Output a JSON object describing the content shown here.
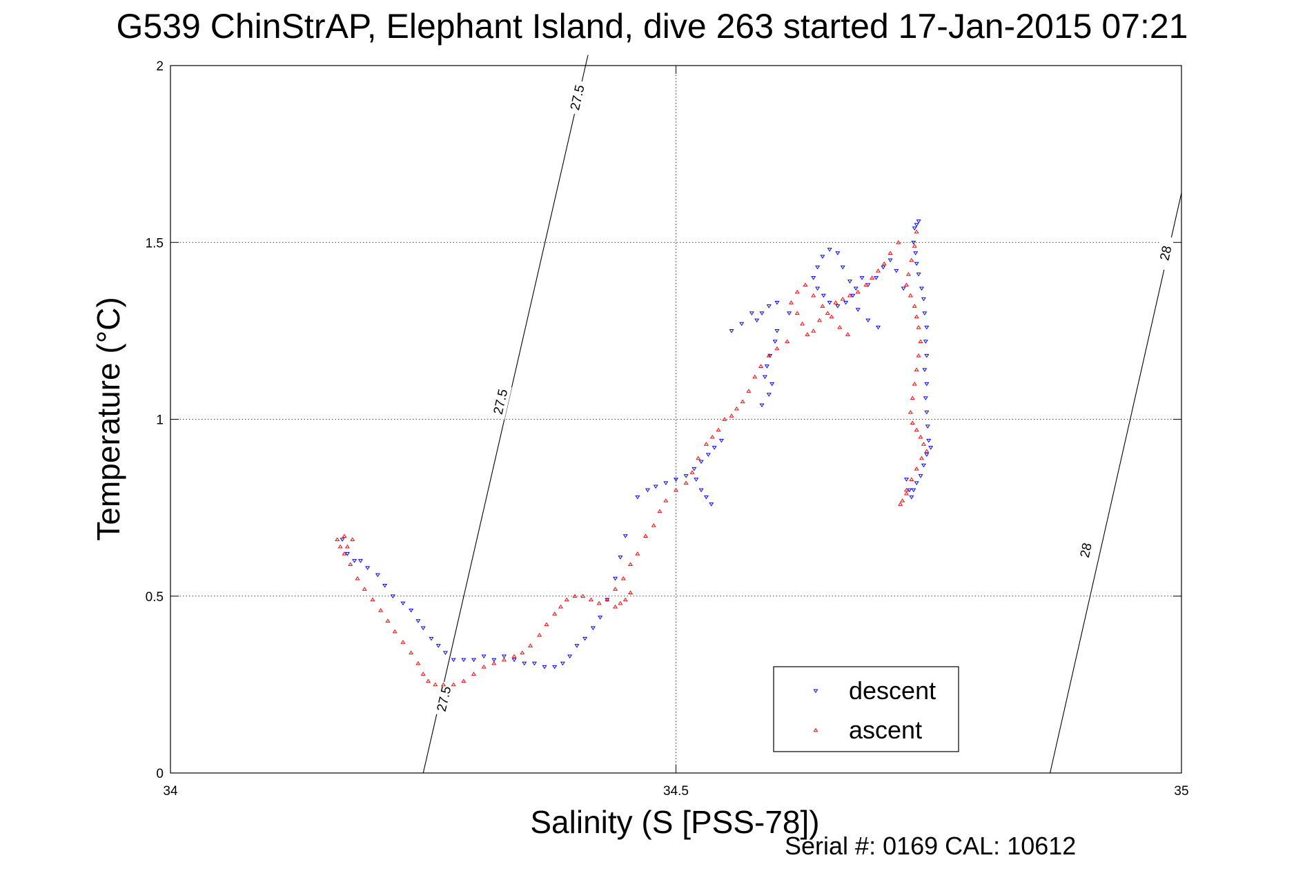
{
  "chart_data": {
    "type": "scatter",
    "title": "G539 ChinStrAP, Elephant Island, dive 263 started 17-Jan-2015 07:21",
    "xlabel": "Salinity (S [PSS-78])",
    "ylabel": "Temperature (°C)",
    "xlim": [
      34,
      35
    ],
    "ylim": [
      0,
      2
    ],
    "xticks": [
      34,
      34.5,
      35
    ],
    "xtick_labels": [
      "34",
      "34.5",
      "35"
    ],
    "yticks": [
      0,
      0.5,
      1,
      1.5,
      2
    ],
    "ytick_labels": [
      "0",
      "0.5",
      "1",
      "1.5",
      "2"
    ],
    "grid": true,
    "legend_position": "bottom-right",
    "annotation": "Serial #: 0169 CAL: 10612",
    "contours": [
      {
        "label": "27.5",
        "points": [
          [
            34.25,
            0
          ],
          [
            34.413,
            2.03
          ]
        ],
        "label_positions": [
          [
            34.27,
            0.21
          ],
          [
            34.326,
            1.05
          ],
          [
            34.402,
            1.91
          ]
        ]
      },
      {
        "label": "28",
        "points": [
          [
            34.87,
            0
          ],
          [
            35.0,
            1.64
          ]
        ],
        "label_positions": [
          [
            34.905,
            0.63
          ],
          [
            34.984,
            1.47
          ]
        ]
      }
    ],
    "series": [
      {
        "name": "descent",
        "color": "#0000ff",
        "marker": "triangle-down",
        "points": [
          [
            34.74,
            1.56
          ],
          [
            34.738,
            1.55
          ],
          [
            34.736,
            1.54
          ],
          [
            34.735,
            1.5
          ],
          [
            34.737,
            1.47
          ],
          [
            34.738,
            1.44
          ],
          [
            34.74,
            1.41
          ],
          [
            34.743,
            1.37
          ],
          [
            34.745,
            1.34
          ],
          [
            34.746,
            1.3
          ],
          [
            34.748,
            1.26
          ],
          [
            34.747,
            1.22
          ],
          [
            34.748,
            1.18
          ],
          [
            34.746,
            1.14
          ],
          [
            34.748,
            1.1
          ],
          [
            34.747,
            1.06
          ],
          [
            34.748,
            1.02
          ],
          [
            34.749,
            0.98
          ],
          [
            34.75,
            0.94
          ],
          [
            34.752,
            0.92
          ],
          [
            34.748,
            0.9
          ],
          [
            34.745,
            0.87
          ],
          [
            34.742,
            0.84
          ],
          [
            34.738,
            0.82
          ],
          [
            34.735,
            0.8
          ],
          [
            34.733,
            0.78
          ],
          [
            34.731,
            0.8
          ],
          [
            34.728,
            0.83
          ],
          [
            34.725,
            1.37
          ],
          [
            34.718,
            1.42
          ],
          [
            34.712,
            1.45
          ],
          [
            34.705,
            1.43
          ],
          [
            34.698,
            1.4
          ],
          [
            34.69,
            1.38
          ],
          [
            34.684,
            1.4
          ],
          [
            34.678,
            1.37
          ],
          [
            34.672,
            1.39
          ],
          [
            34.665,
            1.43
          ],
          [
            34.66,
            1.47
          ],
          [
            34.652,
            1.48
          ],
          [
            34.645,
            1.46
          ],
          [
            34.64,
            1.43
          ],
          [
            34.636,
            1.4
          ],
          [
            34.64,
            1.37
          ],
          [
            34.646,
            1.35
          ],
          [
            34.652,
            1.33
          ],
          [
            34.66,
            1.32
          ],
          [
            34.668,
            1.33
          ],
          [
            34.675,
            1.35
          ],
          [
            34.68,
            1.31
          ],
          [
            34.69,
            1.28
          ],
          [
            34.7,
            1.26
          ],
          [
            34.612,
            1.3
          ],
          [
            34.6,
            1.33
          ],
          [
            34.592,
            1.32
          ],
          [
            34.585,
            1.3
          ],
          [
            34.58,
            1.28
          ],
          [
            34.575,
            1.3
          ],
          [
            34.565,
            1.27
          ],
          [
            34.555,
            1.25
          ],
          [
            34.6,
            1.25
          ],
          [
            34.598,
            1.22
          ],
          [
            34.593,
            1.18
          ],
          [
            34.59,
            1.15
          ],
          [
            34.588,
            1.12
          ],
          [
            34.595,
            1.1
          ],
          [
            34.592,
            1.07
          ],
          [
            34.585,
            1.04
          ],
          [
            34.545,
            0.94
          ],
          [
            34.538,
            0.92
          ],
          [
            34.532,
            0.9
          ],
          [
            34.525,
            0.88
          ],
          [
            34.518,
            0.86
          ],
          [
            34.51,
            0.84
          ],
          [
            34.5,
            0.83
          ],
          [
            34.49,
            0.82
          ],
          [
            34.48,
            0.81
          ],
          [
            34.472,
            0.8
          ],
          [
            34.462,
            0.78
          ],
          [
            34.45,
            0.67
          ],
          [
            34.445,
            0.61
          ],
          [
            34.44,
            0.55
          ],
          [
            34.432,
            0.49
          ],
          [
            34.425,
            0.44
          ],
          [
            34.418,
            0.41
          ],
          [
            34.41,
            0.38
          ],
          [
            34.402,
            0.36
          ],
          [
            34.395,
            0.33
          ],
          [
            34.388,
            0.31
          ],
          [
            34.38,
            0.3
          ],
          [
            34.37,
            0.3
          ],
          [
            34.36,
            0.31
          ],
          [
            34.35,
            0.31
          ],
          [
            34.34,
            0.32
          ],
          [
            34.33,
            0.33
          ],
          [
            34.32,
            0.32
          ],
          [
            34.31,
            0.33
          ],
          [
            34.3,
            0.32
          ],
          [
            34.29,
            0.32
          ],
          [
            34.28,
            0.32
          ],
          [
            34.272,
            0.34
          ],
          [
            34.265,
            0.36
          ],
          [
            34.258,
            0.38
          ],
          [
            34.25,
            0.41
          ],
          [
            34.245,
            0.43
          ],
          [
            34.238,
            0.46
          ],
          [
            34.23,
            0.48
          ],
          [
            34.22,
            0.5
          ],
          [
            34.212,
            0.53
          ],
          [
            34.205,
            0.56
          ],
          [
            34.195,
            0.58
          ],
          [
            34.188,
            0.6
          ],
          [
            34.182,
            0.6
          ],
          [
            34.175,
            0.62
          ],
          [
            34.17,
            0.66
          ],
          [
            34.52,
            0.83
          ],
          [
            34.525,
            0.8
          ],
          [
            34.53,
            0.78
          ],
          [
            34.535,
            0.76
          ]
        ]
      },
      {
        "name": "ascent",
        "color": "#ff0000",
        "marker": "triangle-up",
        "points": [
          [
            34.738,
            1.53
          ],
          [
            34.736,
            1.49
          ],
          [
            34.733,
            1.45
          ],
          [
            34.73,
            1.41
          ],
          [
            34.728,
            1.38
          ],
          [
            34.732,
            1.35
          ],
          [
            34.736,
            1.32
          ],
          [
            34.738,
            1.29
          ],
          [
            34.74,
            1.26
          ],
          [
            34.742,
            1.22
          ],
          [
            34.74,
            1.18
          ],
          [
            34.738,
            1.14
          ],
          [
            34.736,
            1.1
          ],
          [
            34.734,
            1.06
          ],
          [
            34.732,
            1.02
          ],
          [
            34.734,
            0.99
          ],
          [
            34.738,
            0.97
          ],
          [
            34.742,
            0.95
          ],
          [
            34.745,
            0.93
          ],
          [
            34.748,
            0.91
          ],
          [
            34.743,
            0.89
          ],
          [
            34.738,
            0.86
          ],
          [
            34.733,
            0.83
          ],
          [
            34.728,
            0.8
          ],
          [
            34.724,
            0.77
          ],
          [
            34.722,
            0.76
          ],
          [
            34.728,
            0.79
          ],
          [
            34.72,
            1.5
          ],
          [
            34.712,
            1.47
          ],
          [
            34.706,
            1.44
          ],
          [
            34.7,
            1.42
          ],
          [
            34.694,
            1.4
          ],
          [
            34.688,
            1.38
          ],
          [
            34.68,
            1.36
          ],
          [
            34.672,
            1.35
          ],
          [
            34.665,
            1.34
          ],
          [
            34.658,
            1.33
          ],
          [
            34.65,
            1.3
          ],
          [
            34.642,
            1.28
          ],
          [
            34.636,
            1.25
          ],
          [
            34.63,
            1.24
          ],
          [
            34.625,
            1.27
          ],
          [
            34.62,
            1.3
          ],
          [
            34.614,
            1.33
          ],
          [
            34.62,
            1.36
          ],
          [
            34.628,
            1.38
          ],
          [
            34.636,
            1.35
          ],
          [
            34.645,
            1.32
          ],
          [
            34.654,
            1.29
          ],
          [
            34.662,
            1.26
          ],
          [
            34.67,
            1.24
          ],
          [
            34.61,
            1.22
          ],
          [
            34.6,
            1.2
          ],
          [
            34.592,
            1.18
          ],
          [
            34.584,
            1.15
          ],
          [
            34.578,
            1.12
          ],
          [
            34.572,
            1.08
          ],
          [
            34.566,
            1.05
          ],
          [
            34.56,
            1.03
          ],
          [
            34.555,
            1.01
          ],
          [
            34.548,
            1.0
          ],
          [
            34.542,
            0.97
          ],
          [
            34.536,
            0.95
          ],
          [
            34.53,
            0.93
          ],
          [
            34.522,
            0.89
          ],
          [
            34.516,
            0.85
          ],
          [
            34.51,
            0.82
          ],
          [
            34.5,
            0.8
          ],
          [
            34.49,
            0.77
          ],
          [
            34.484,
            0.74
          ],
          [
            34.478,
            0.7
          ],
          [
            34.47,
            0.67
          ],
          [
            34.462,
            0.62
          ],
          [
            34.455,
            0.59
          ],
          [
            34.448,
            0.55
          ],
          [
            34.44,
            0.52
          ],
          [
            34.432,
            0.49
          ],
          [
            34.424,
            0.48
          ],
          [
            34.416,
            0.49
          ],
          [
            34.408,
            0.5
          ],
          [
            34.4,
            0.5
          ],
          [
            34.392,
            0.49
          ],
          [
            34.386,
            0.47
          ],
          [
            34.38,
            0.45
          ],
          [
            34.372,
            0.42
          ],
          [
            34.365,
            0.39
          ],
          [
            34.356,
            0.36
          ],
          [
            34.348,
            0.34
          ],
          [
            34.34,
            0.33
          ],
          [
            34.33,
            0.32
          ],
          [
            34.32,
            0.31
          ],
          [
            34.31,
            0.3
          ],
          [
            34.3,
            0.28
          ],
          [
            34.29,
            0.26
          ],
          [
            34.28,
            0.25
          ],
          [
            34.27,
            0.25
          ],
          [
            34.262,
            0.25
          ],
          [
            34.255,
            0.26
          ],
          [
            34.25,
            0.28
          ],
          [
            34.245,
            0.31
          ],
          [
            34.238,
            0.34
          ],
          [
            34.23,
            0.37
          ],
          [
            34.222,
            0.4
          ],
          [
            34.215,
            0.43
          ],
          [
            34.208,
            0.46
          ],
          [
            34.2,
            0.49
          ],
          [
            34.192,
            0.52
          ],
          [
            34.185,
            0.55
          ],
          [
            34.178,
            0.59
          ],
          [
            34.172,
            0.62
          ],
          [
            34.168,
            0.64
          ],
          [
            34.165,
            0.66
          ],
          [
            34.172,
            0.67
          ],
          [
            34.18,
            0.66
          ],
          [
            34.175,
            0.64
          ],
          [
            34.44,
            0.47
          ],
          [
            34.445,
            0.48
          ],
          [
            34.45,
            0.49
          ],
          [
            34.455,
            0.51
          ]
        ]
      }
    ]
  },
  "footer": {
    "serial_text": "Serial #: 0169 CAL: 10612"
  }
}
